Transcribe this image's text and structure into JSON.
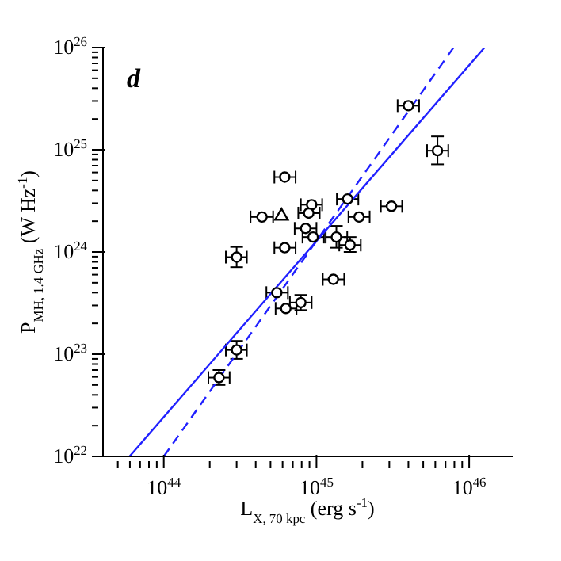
{
  "chart_data": {
    "type": "scatter",
    "xlabel": "L$_{X, 70 kpc}$ (erg s$^{-1}$)",
    "ylabel": "P$_{MH, 1.4 GHz}$ (W Hz$^{-1}$)",
    "annotations": [
      "d"
    ],
    "log": "xy",
    "marker": "circle",
    "xlim": [
      4e+43,
      1.95e+46
    ],
    "ylim": [
      1e+22,
      1e+26
    ],
    "xticks": [
      {
        "value": 5e+43,
        "label": null
      },
      {
        "value": 6e+43,
        "label": null
      },
      {
        "value": 7e+43,
        "label": null
      },
      {
        "value": 8e+43,
        "label": null
      },
      {
        "value": 9e+43,
        "label": null
      },
      {
        "value": 1e+44,
        "label": "10$^{44}$"
      },
      {
        "value": 2e+44,
        "label": null
      },
      {
        "value": 3e+44,
        "label": null
      },
      {
        "value": 4e+44,
        "label": null
      },
      {
        "value": 5e+44,
        "label": null
      },
      {
        "value": 6e+44,
        "label": null
      },
      {
        "value": 7e+44,
        "label": null
      },
      {
        "value": 8e+44,
        "label": null
      },
      {
        "value": 9e+44,
        "label": null
      },
      {
        "value": 1e+45,
        "label": "10$^{45}$"
      },
      {
        "value": 2e+45,
        "label": null
      },
      {
        "value": 3e+45,
        "label": null
      },
      {
        "value": 4e+45,
        "label": null
      },
      {
        "value": 5e+45,
        "label": null
      },
      {
        "value": 6e+45,
        "label": null
      },
      {
        "value": 7e+45,
        "label": null
      },
      {
        "value": 8e+45,
        "label": null
      },
      {
        "value": 9e+45,
        "label": null
      },
      {
        "value": 1e+46,
        "label": "10$^{46}$"
      }
    ],
    "yticks": [
      {
        "value": 1e+22,
        "label": "10$^{22}$"
      },
      {
        "value": 2e+22,
        "label": null
      },
      {
        "value": 3e+22,
        "label": null
      },
      {
        "value": 4e+22,
        "label": null
      },
      {
        "value": 5e+22,
        "label": null
      },
      {
        "value": 6e+22,
        "label": null
      },
      {
        "value": 7e+22,
        "label": null
      },
      {
        "value": 8e+22,
        "label": null
      },
      {
        "value": 9e+22,
        "label": null
      },
      {
        "value": 1e+23,
        "label": "10$^{23}$"
      },
      {
        "value": 2e+23,
        "label": null
      },
      {
        "value": 3e+23,
        "label": null
      },
      {
        "value": 4e+23,
        "label": null
      },
      {
        "value": 5e+23,
        "label": null
      },
      {
        "value": 6e+23,
        "label": null
      },
      {
        "value": 7e+23,
        "label": null
      },
      {
        "value": 8e+23,
        "label": null
      },
      {
        "value": 9e+23,
        "label": null
      },
      {
        "value": 1e+24,
        "label": "10$^{24}$"
      },
      {
        "value": 2e+24,
        "label": null
      },
      {
        "value": 3e+24,
        "label": null
      },
      {
        "value": 4e+24,
        "label": null
      },
      {
        "value": 5e+24,
        "label": null
      },
      {
        "value": 6e+24,
        "label": null
      },
      {
        "value": 7e+24,
        "label": null
      },
      {
        "value": 8e+24,
        "label": null
      },
      {
        "value": 9e+24,
        "label": null
      },
      {
        "value": 1e+25,
        "label": "10$^{25}$"
      },
      {
        "value": 2e+25,
        "label": null
      },
      {
        "value": 3e+25,
        "label": null
      },
      {
        "value": 4e+25,
        "label": null
      },
      {
        "value": 5e+25,
        "label": null
      },
      {
        "value": 6e+25,
        "label": null
      },
      {
        "value": 7e+25,
        "label": null
      },
      {
        "value": 8e+25,
        "label": null
      },
      {
        "value": 9e+25,
        "label": null
      },
      {
        "value": 1e+26,
        "label": "10$^{26}$"
      }
    ],
    "series": [
      {
        "color": "#000000",
        "xerrors": [
          [
            3.4e+45,
            4.7e+45
          ],
          [
            5.3e+45,
            7.3e+45
          ],
          [
            5.3e+44,
            7.3e+44
          ],
          [
            7.9e+44,
            1.09e+45
          ],
          [
            7.6e+44,
            1.05e+45
          ],
          [
            3.7e+44,
            5.2e+44
          ],
          [
            1.36e+45,
            1.88e+45
          ],
          [
            1.62e+45,
            2.23e+45
          ],
          [
            2.64e+45,
            3.64e+45
          ],
          [
            7.2e+44,
            1e+45
          ],
          [
            8.1e+44,
            1.12e+45
          ],
          [
            1.15e+45,
            1.59e+45
          ],
          [
            1.41e+45,
            1.95e+45
          ],
          [
            5.3e+44,
            7.3e+44
          ],
          [
            2.55e+44,
            3.5e+44
          ],
          [
            1.1e+45,
            1.52e+45
          ],
          [
            4.7e+44,
            6.5e+44
          ],
          [
            5.4e+44,
            7.4e+44
          ],
          [
            6.7e+44,
            9.3e+44
          ],
          [
            2.55e+44,
            3.5e+44
          ],
          [
            1.96e+44,
            2.7e+44
          ]
        ],
        "x": [
          4e+45,
          6.2e+45,
          6.2e+44,
          9.3e+44,
          8.9e+44,
          4.4e+44,
          1.6e+45,
          1.9e+45,
          3.1e+45,
          8.5e+44,
          9.5e+44,
          1.35e+45,
          1.66e+45,
          6.2e+44,
          3e+44,
          1.29e+45,
          5.5e+44,
          6.3e+44,
          7.9e+44,
          3e+44,
          2.3e+44
        ],
        "values": [
          2.7e+25,
          9.8e+24,
          5.4e+24,
          2.9e+24,
          2.4e+24,
          2.2e+24,
          3.3e+24,
          2.2e+24,
          2.8e+24,
          1.7e+24,
          1.4e+24,
          1.4e+24,
          1.17e+24,
          1.1e+24,
          8.9e+23,
          5.4e+23,
          4e+23,
          2.8e+23,
          3.2e+23,
          1.1e+23,
          5.9e+22
        ],
        "errors": [
          null,
          [
            7.2e+24,
            1.35e+25
          ],
          null,
          null,
          null,
          null,
          null,
          null,
          null,
          null,
          null,
          [
            1.1e+24,
            1.8e+24
          ],
          [
            1e+24,
            1.4e+24
          ],
          null,
          [
            7.1e+23,
            1.12e+24
          ],
          null,
          null,
          null,
          [
            2.7e+23,
            3.8e+23
          ],
          [
            9e+22,
            1.35e+23
          ],
          [
            5e+22,
            7e+22
          ]
        ]
      },
      {
        "color": "#000000",
        "marker": "triangle",
        "x": [
          5.9e+44
        ],
        "values": [
          2.3e+24
        ]
      },
      {
        "type": "line",
        "color": "#2020ff",
        "marker": "none",
        "line_style": "solid",
        "x": [
          5.97e+43,
          1.26e+46
        ],
        "values": [
          1e+22,
          1e+26
        ]
      },
      {
        "type": "line",
        "color": "#2020ff",
        "marker": "none",
        "line_style": "dashed",
        "x": [
          1e+44,
          7.9e+45
        ],
        "values": [
          1e+22,
          1e+26
        ]
      }
    ]
  }
}
